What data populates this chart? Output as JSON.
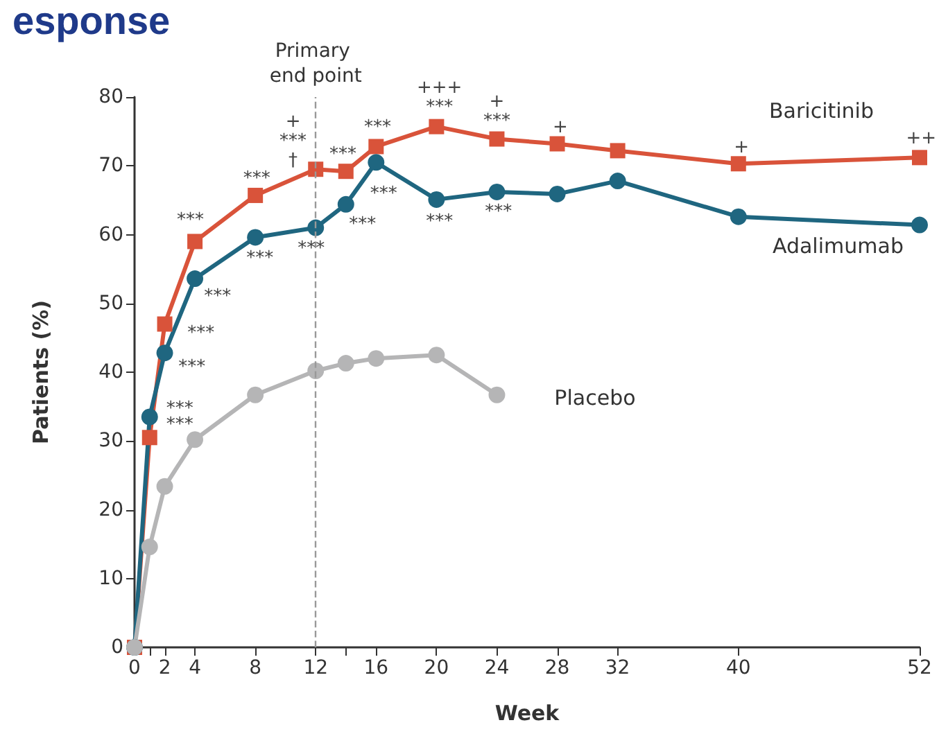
{
  "chart_data": {
    "type": "line",
    "title": "esponse",
    "xlabel": "Week",
    "ylabel": "Patients (%)",
    "x": [
      0,
      1,
      2,
      4,
      8,
      12,
      14,
      16,
      20,
      24,
      28,
      32,
      40,
      52
    ],
    "series": [
      {
        "name": "Baricitinib",
        "color": "#d9533a",
        "marker": "square",
        "values": [
          0,
          30.5,
          47,
          59,
          65.7,
          69.5,
          69.2,
          72.8,
          75.7,
          73.9,
          73.2,
          72.2,
          70.3,
          71.2
        ]
      },
      {
        "name": "Adalimumab",
        "color": "#1f6680",
        "marker": "circle",
        "values": [
          0,
          33.5,
          42.8,
          53.6,
          59.6,
          61,
          64.4,
          70.5,
          65.1,
          66.2,
          65.9,
          67.8,
          62.6,
          61.4
        ]
      },
      {
        "name": "Placebo",
        "color": "#b5b5b6",
        "marker": "circle",
        "values": [
          0,
          14.6,
          23.4,
          30.2,
          36.7,
          40.2,
          41.3,
          42,
          42.5,
          36.7,
          null,
          null,
          null,
          null
        ]
      }
    ],
    "xlim": [
      0,
      52
    ],
    "xticks": [
      0,
      {
        "value": 1,
        "label": null
      },
      2,
      4,
      8,
      12,
      {
        "value": 14,
        "label": null
      },
      16,
      20,
      24,
      28,
      32,
      40,
      52
    ],
    "ylim": [
      0,
      80
    ],
    "yticks": [
      0,
      10,
      20,
      30,
      40,
      50,
      60,
      70,
      80
    ],
    "ref_lines": [
      {
        "axis": "x",
        "value": 12,
        "label": "Primary end point",
        "color": "#999999",
        "line_style": "dashed"
      }
    ],
    "annotations": [
      {
        "text": "***",
        "x": 1,
        "y": 33.5
      },
      {
        "text": "***",
        "x": 1,
        "y": 30.5
      },
      {
        "text": "***",
        "x": 2,
        "y": 42.8
      },
      {
        "text": "***",
        "x": 2,
        "y": 47
      },
      {
        "text": "***",
        "x": 4,
        "y": 53.6
      },
      {
        "text": "***",
        "x": 4,
        "y": 59
      },
      {
        "text": "***",
        "x": 8,
        "y": 59.6
      },
      {
        "text": "***",
        "x": 8,
        "y": 65.7
      },
      {
        "text": "+\n***\n†",
        "x": 12,
        "y": 69.5
      },
      {
        "text": "***",
        "x": 12,
        "y": 61
      },
      {
        "text": "***",
        "x": 14,
        "y": 69.2
      },
      {
        "text": "***",
        "x": 14,
        "y": 64.4
      },
      {
        "text": "***",
        "x": 16,
        "y": 70.5
      },
      {
        "text": "***",
        "x": 16,
        "y": 72.8
      },
      {
        "text": "+++\n***",
        "x": 20,
        "y": 75.7
      },
      {
        "text": "+\n***",
        "x": 24,
        "y": 73.9
      },
      {
        "text": "+",
        "x": 28,
        "y": 73.2
      },
      {
        "text": "+",
        "x": 40,
        "y": 70.3
      },
      {
        "text": "++",
        "x": 52,
        "y": 71.2
      },
      {
        "text": "***",
        "x": 20,
        "y": 65.1
      },
      {
        "text": "***",
        "x": 24,
        "y": 66.2
      }
    ],
    "grid": false,
    "legend": false,
    "line_style": "solid"
  }
}
